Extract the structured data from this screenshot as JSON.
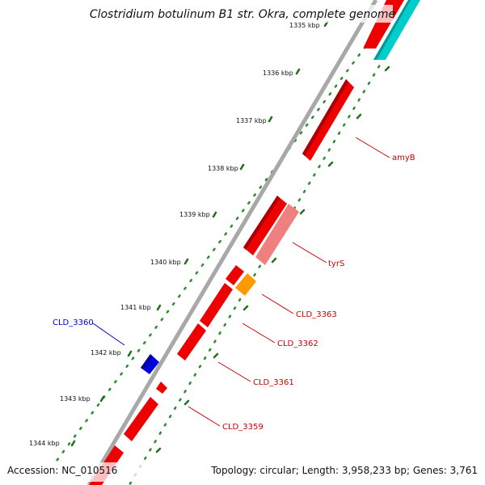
{
  "title": "Clostridium botulinum B1 str. Okra, complete genome",
  "footer": {
    "accession": "Accession: NC_010516",
    "summary": "Topology: circular; Length: 3,958,233 bp; Genes: 3,761"
  },
  "ticks": [
    {
      "label": "1335 kbp"
    },
    {
      "label": "1336 kbp"
    },
    {
      "label": "1337 kbp"
    },
    {
      "label": "1338 kbp"
    },
    {
      "label": "1339 kbp"
    },
    {
      "label": "1340 kbp"
    },
    {
      "label": "1341 kbp"
    },
    {
      "label": "1342 kbp"
    },
    {
      "label": "1343 kbp"
    },
    {
      "label": "1344 kbp"
    }
  ],
  "gene_labels": [
    {
      "label": "amyB",
      "color": "#cc0000"
    },
    {
      "label": "tyrS",
      "color": "#cc0000"
    },
    {
      "label": "CLD_3363",
      "color": "#cc0000"
    },
    {
      "label": "CLD_3362",
      "color": "#cc0000"
    },
    {
      "label": "CLD_3361",
      "color": "#cc0000"
    },
    {
      "label": "CLD_3359",
      "color": "#cc0000"
    },
    {
      "label": "CLD_3360",
      "color": "#0000cc"
    }
  ],
  "colors": {
    "backbone": "#8c8c8c",
    "dots": "#2e8b2e",
    "gene_red": "#ee0000",
    "gene_pink": "#f08080",
    "gene_orange": "#ff9900",
    "gene_blue": "#0000dd",
    "gene_cyan": "#00cccc"
  }
}
